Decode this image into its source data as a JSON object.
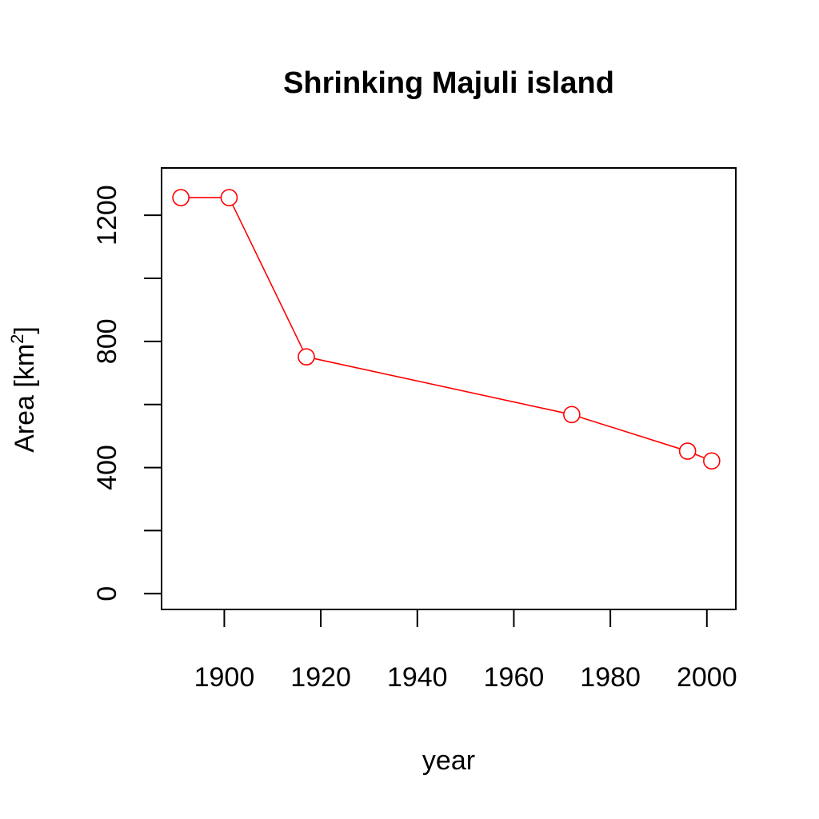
{
  "chart_data": {
    "type": "line",
    "title": "Shrinking Majuli island",
    "xlabel": "year",
    "ylabel": "Area [km",
    "ylabel_superscript": "2",
    "ylabel_suffix": "]",
    "xlim": [
      1887,
      2006
    ],
    "ylim": [
      -50,
      1350
    ],
    "x_ticks": [
      1900,
      1920,
      1940,
      1960,
      1980,
      2000
    ],
    "x_tick_labels": [
      "1900",
      "1920",
      "1940",
      "1960",
      "1980",
      "2000"
    ],
    "y_ticks": [
      0,
      200,
      400,
      600,
      800,
      1000,
      1200
    ],
    "y_tick_labels": [
      "0",
      "",
      "400",
      "",
      "800",
      "",
      "1200"
    ],
    "grid": false,
    "series": [
      {
        "x": [
          1891,
          1901,
          1917,
          1972,
          1996,
          2001
        ],
        "values": [
          1256,
          1256,
          751,
          568,
          452,
          421
        ],
        "color": "#ff0000",
        "marker": "open-circle"
      }
    ]
  }
}
